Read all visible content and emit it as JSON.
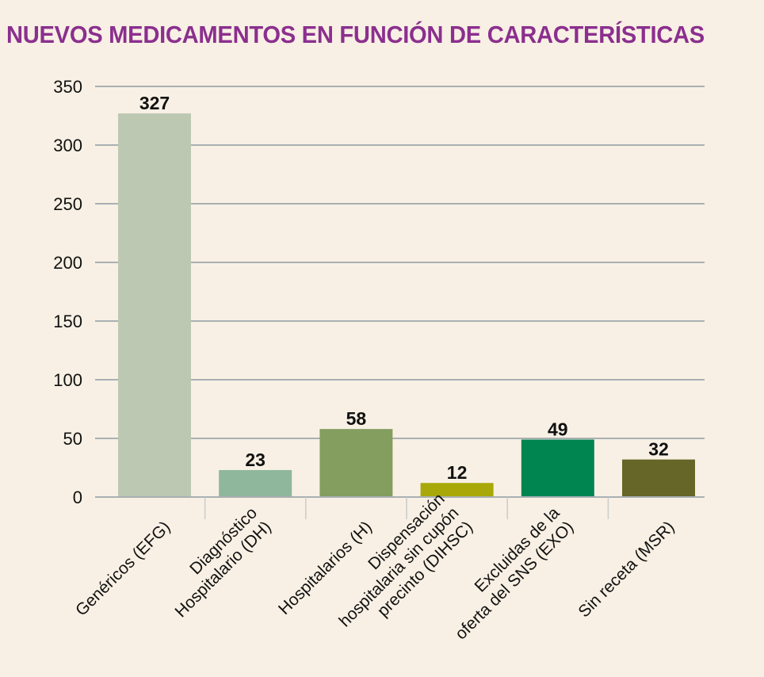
{
  "title": "NUEVOS MEDICAMENTOS EN FUNCIÓN DE CARACTERÍSTICAS",
  "colors": {
    "title": "#8b2f8e",
    "background": "#f8f0e4",
    "grid": "#a9b0b4",
    "axis": "#a9b0b4"
  },
  "chart_data": {
    "type": "bar",
    "title": "NUEVOS MEDICAMENTOS EN FUNCIÓN DE CARACTERÍSTICAS",
    "categories": [
      [
        "Genéricos (EFG)"
      ],
      [
        "Diagnóstico",
        "Hospitalario (DH)"
      ],
      [
        "Hospitalarios (H)"
      ],
      [
        "Dispensación",
        "hospitalaria sin cupón",
        "precinto (DIHSC)"
      ],
      [
        "Excluidas de la",
        "oferta del SNS (EXO)"
      ],
      [
        "Sin receta (MSR)"
      ]
    ],
    "values": [
      327,
      23,
      58,
      12,
      49,
      32
    ],
    "bar_colors": [
      "#bdc8b2",
      "#8fb79c",
      "#849e5f",
      "#a8a808",
      "#008550",
      "#656627"
    ],
    "ylim": [
      0,
      350
    ],
    "yticks": [
      0,
      50,
      100,
      150,
      200,
      250,
      300,
      350
    ],
    "xlabel": "",
    "ylabel": "",
    "grid": true,
    "data_labels": true,
    "x_label_rotation_deg": -45
  }
}
